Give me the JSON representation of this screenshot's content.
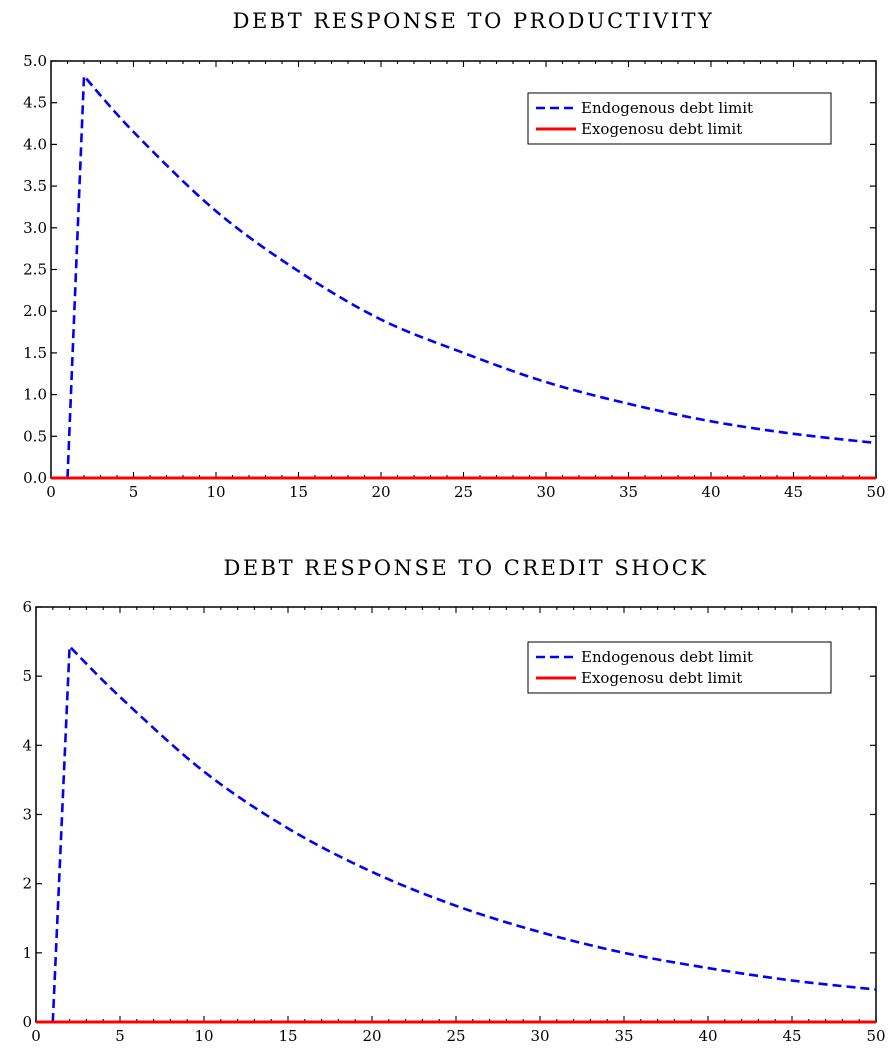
{
  "chart_data": [
    {
      "type": "line",
      "title": "DEBT RESPONSE TO PRODUCTIVITY",
      "xlim": [
        0,
        50
      ],
      "ylim": [
        0,
        5
      ],
      "xticks": [
        0,
        5,
        10,
        15,
        20,
        25,
        30,
        35,
        40,
        45,
        50
      ],
      "yticks": [
        0.0,
        0.5,
        1.0,
        1.5,
        2.0,
        2.5,
        3.0,
        3.5,
        4.0,
        4.5,
        5.0
      ],
      "ytick_labels": [
        "0.0",
        "0.5",
        "1.0",
        "1.5",
        "2.0",
        "2.5",
        "3.0",
        "3.5",
        "4.0",
        "4.5",
        "5.0"
      ],
      "xtick_labels": [
        "0",
        "5",
        "10",
        "15",
        "20",
        "25",
        "30",
        "35",
        "40",
        "45",
        "50"
      ],
      "legend_position": "top-right",
      "grid": false,
      "series": [
        {
          "name": "Endogenous debt limit",
          "color": "#0000ff",
          "style": "dashed",
          "x": [
            1,
            2,
            5,
            10,
            15,
            20,
            25,
            30,
            35,
            40,
            45,
            50
          ],
          "y": [
            0.0,
            4.82,
            4.15,
            3.2,
            2.48,
            1.9,
            1.5,
            1.15,
            0.89,
            0.68,
            0.53,
            0.42
          ]
        },
        {
          "name": "Exogenosu debt limit",
          "color": "#ff0000",
          "style": "solid",
          "x": [
            0,
            50
          ],
          "y": [
            0,
            0
          ]
        }
      ]
    },
    {
      "type": "line",
      "title": "DEBT RESPONSE TO CREDIT SHOCK",
      "xlim": [
        0,
        50
      ],
      "ylim": [
        0,
        6
      ],
      "xticks": [
        0,
        5,
        10,
        15,
        20,
        25,
        30,
        35,
        40,
        45,
        50
      ],
      "yticks": [
        0,
        1,
        2,
        3,
        4,
        5,
        6
      ],
      "ytick_labels": [
        "0",
        "1",
        "2",
        "3",
        "4",
        "5",
        "6"
      ],
      "xtick_labels": [
        "0",
        "5",
        "10",
        "15",
        "20",
        "25",
        "30",
        "35",
        "40",
        "45",
        "50"
      ],
      "legend_position": "top-right",
      "grid": false,
      "series": [
        {
          "name": "Endogenous debt limit",
          "color": "#0000ff",
          "style": "dashed",
          "x": [
            1,
            2,
            5,
            10,
            15,
            20,
            25,
            30,
            35,
            40,
            45,
            50
          ],
          "y": [
            0.0,
            5.43,
            4.7,
            3.62,
            2.8,
            2.17,
            1.68,
            1.3,
            1.0,
            0.78,
            0.6,
            0.47
          ]
        },
        {
          "name": "Exogenosu debt limit",
          "color": "#ff0000",
          "style": "solid",
          "x": [
            0,
            50
          ],
          "y": [
            0,
            0
          ]
        }
      ]
    }
  ]
}
